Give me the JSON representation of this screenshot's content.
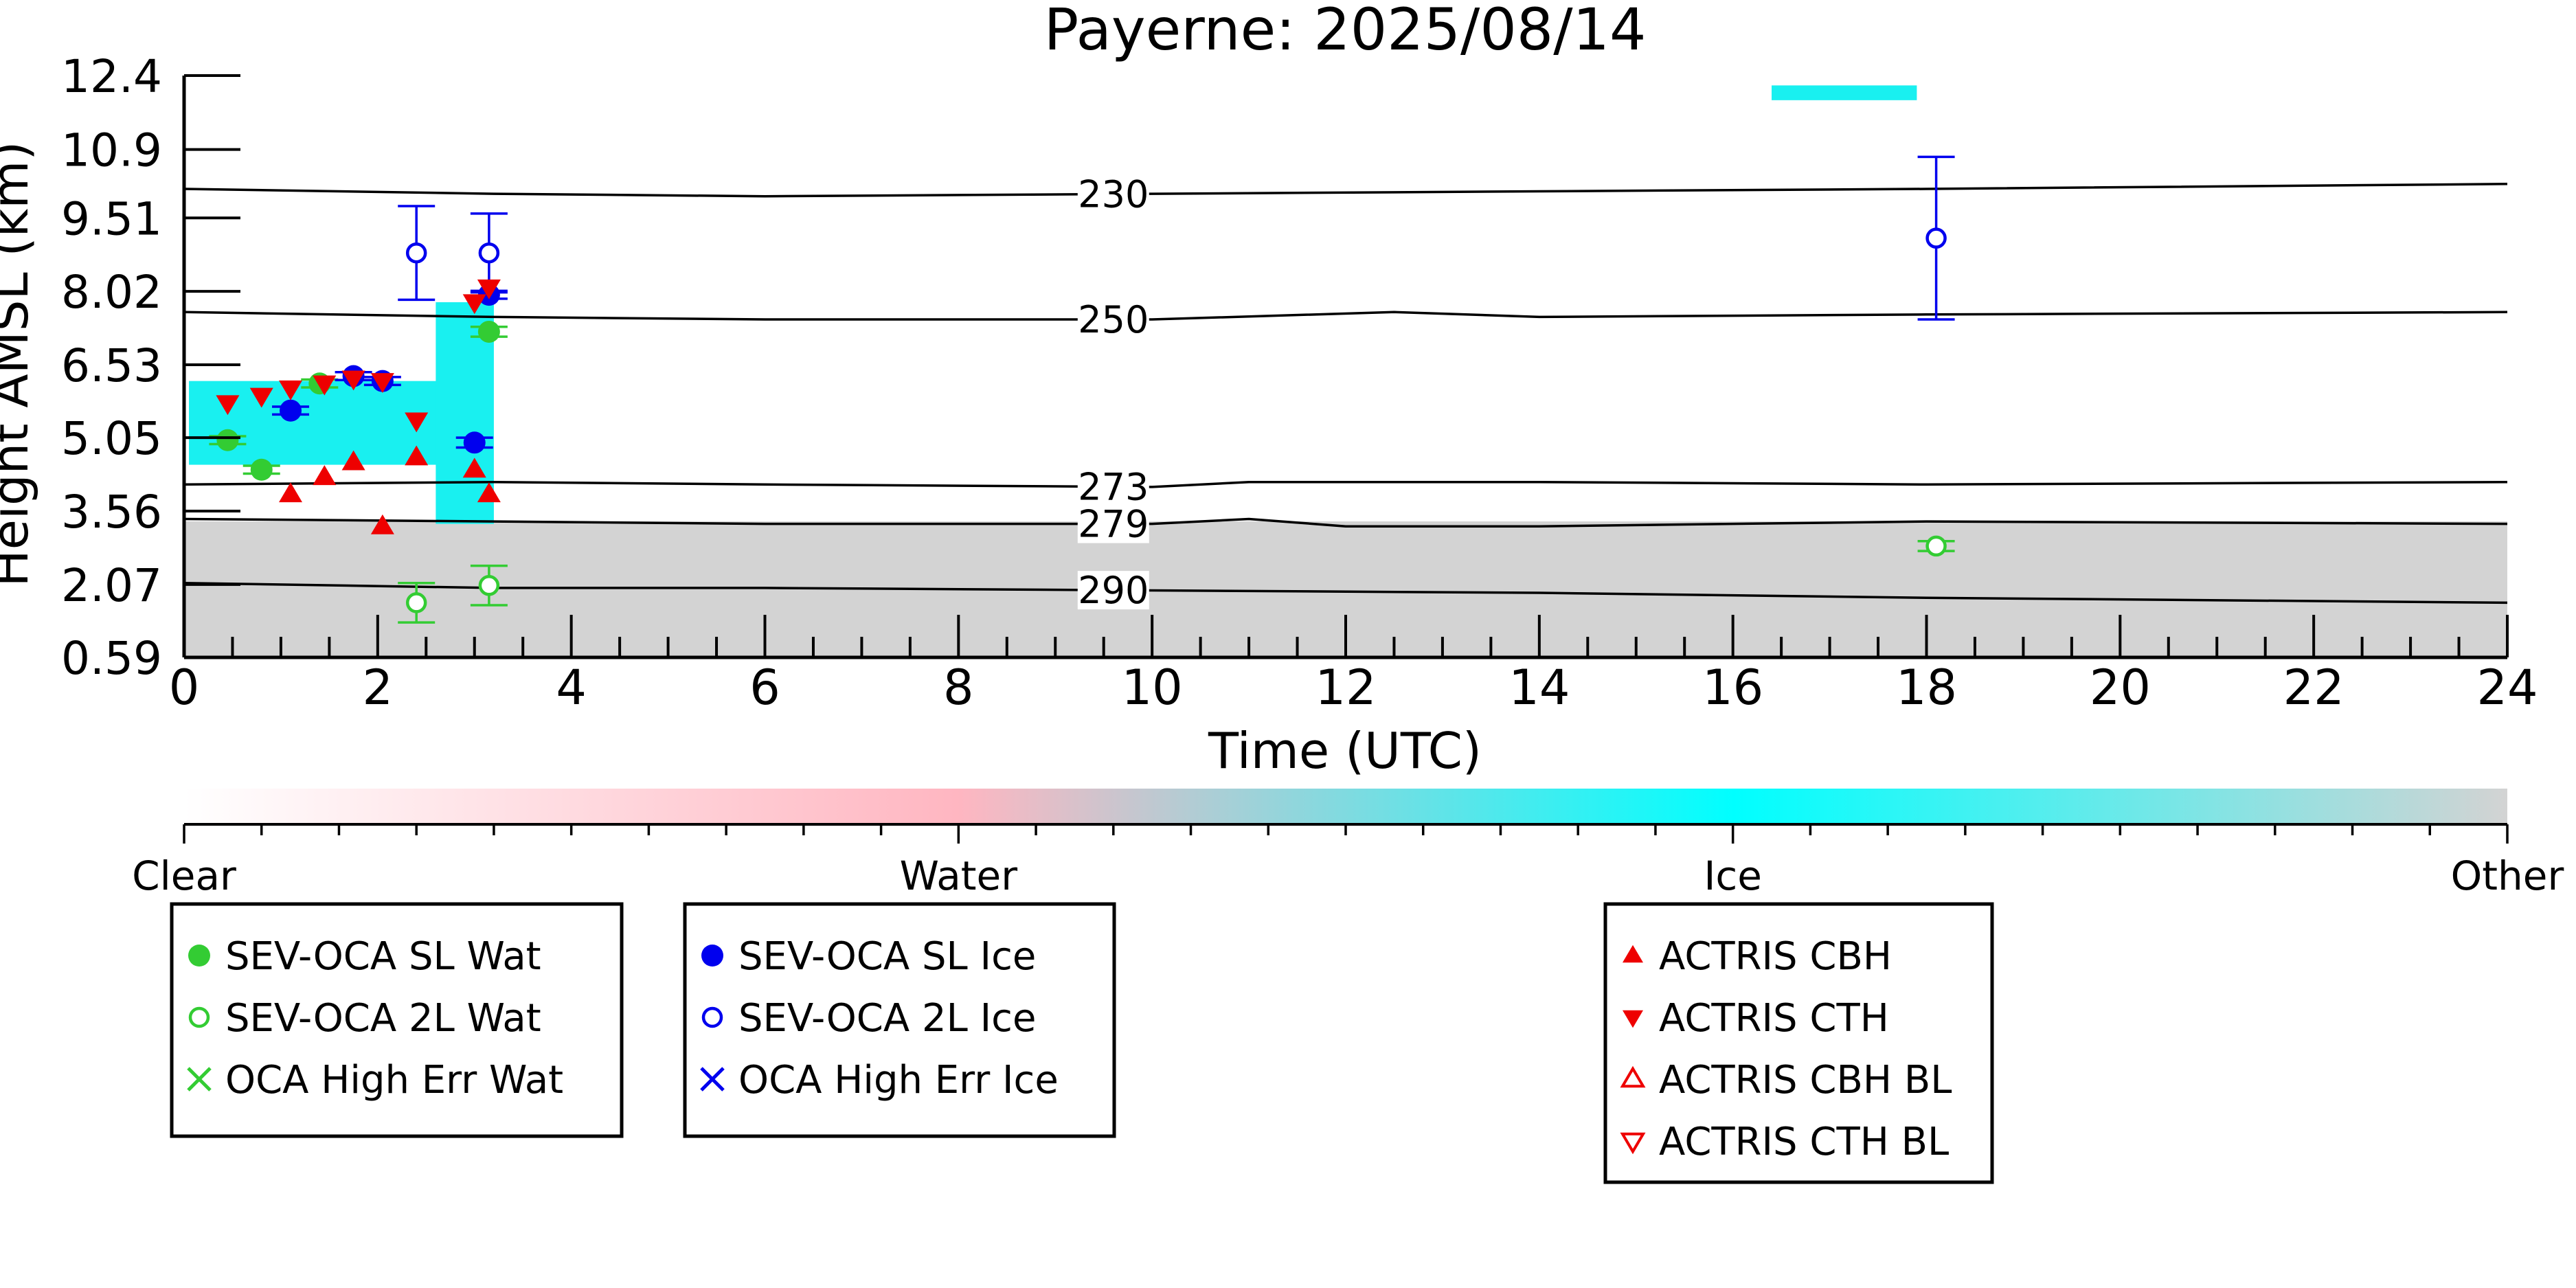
{
  "chart_data": {
    "type": "scatter",
    "title": "Payerne: 2025/08/14",
    "xlabel": "Time (UTC)",
    "ylabel": "Height AMSL (km)",
    "xlim": [
      0,
      24
    ],
    "ylim": [
      0.59,
      12.4
    ],
    "x_ticks": [
      0,
      2,
      4,
      6,
      8,
      10,
      12,
      14,
      16,
      18,
      20,
      22,
      24
    ],
    "x_tick_labels": [
      "0",
      "2",
      "4",
      "6",
      "8",
      "10",
      "12",
      "14",
      "16",
      "18",
      "20",
      "22",
      "24"
    ],
    "y_ticks": [
      0.59,
      2.07,
      3.56,
      5.05,
      6.53,
      8.02,
      9.51,
      10.9,
      12.4
    ],
    "y_tick_labels": [
      "0.59",
      "2.07",
      "3.56",
      "5.05",
      "6.53",
      "8.02",
      "9.51",
      "10.9",
      "12.4"
    ],
    "grid": false,
    "isotherms": [
      {
        "label": "230",
        "label_x": 9.6,
        "points": [
          [
            0,
            10.1
          ],
          [
            3.2,
            10.0
          ],
          [
            6,
            9.95
          ],
          [
            10,
            10.0
          ],
          [
            14,
            10.05
          ],
          [
            18,
            10.1
          ],
          [
            24,
            10.2
          ]
        ]
      },
      {
        "label": "250",
        "label_x": 9.6,
        "points": [
          [
            0,
            7.6
          ],
          [
            3.2,
            7.5
          ],
          [
            6,
            7.45
          ],
          [
            10,
            7.45
          ],
          [
            12.5,
            7.6
          ],
          [
            14,
            7.5
          ],
          [
            18,
            7.55
          ],
          [
            24,
            7.6
          ]
        ]
      },
      {
        "label": "273",
        "label_x": 9.6,
        "points": [
          [
            0,
            4.1
          ],
          [
            3.2,
            4.15
          ],
          [
            6,
            4.1
          ],
          [
            10,
            4.05
          ],
          [
            11,
            4.15
          ],
          [
            14,
            4.15
          ],
          [
            18,
            4.1
          ],
          [
            24,
            4.15
          ]
        ]
      },
      {
        "label": "279",
        "label_x": 9.6,
        "points": [
          [
            0,
            3.4
          ],
          [
            3.2,
            3.35
          ],
          [
            6,
            3.3
          ],
          [
            10,
            3.3
          ],
          [
            11,
            3.4
          ],
          [
            12,
            3.25
          ],
          [
            14,
            3.25
          ],
          [
            18,
            3.35
          ],
          [
            24,
            3.3
          ]
        ]
      },
      {
        "label": "290",
        "label_x": 9.6,
        "points": [
          [
            0,
            2.1
          ],
          [
            3.2,
            2.0
          ],
          [
            6,
            2.0
          ],
          [
            10,
            1.95
          ],
          [
            14,
            1.9
          ],
          [
            18,
            1.8
          ],
          [
            24,
            1.7
          ]
        ]
      }
    ],
    "classification_regions": [
      {
        "class": "Other",
        "color": "#d3d3d3",
        "x_start": 0,
        "x_end": 24,
        "y_bottom": 0.59,
        "y_top": 3.35
      },
      {
        "class": "Ice",
        "color": "#19f0f0",
        "x_start": 0.05,
        "x_end": 2.7,
        "y_bottom": 4.5,
        "y_top": 6.2
      },
      {
        "class": "Ice",
        "color": "#19f0f0",
        "x_start": 2.6,
        "x_end": 3.2,
        "y_bottom": 3.3,
        "y_top": 7.8
      },
      {
        "class": "Ice",
        "color": "#19f0f0",
        "x_start": 16.4,
        "x_end": 17.9,
        "y_bottom": 11.9,
        "y_top": 12.2
      }
    ],
    "series": [
      {
        "name": "SEV-OCA SL Wat",
        "color": "#33cc33",
        "marker": "circle-filled",
        "x": [
          0.45,
          0.8,
          1.4,
          3.15
        ],
        "y": [
          5.0,
          4.4,
          6.15,
          7.2
        ],
        "err": [
          0.08,
          0.08,
          0.08,
          0.1
        ]
      },
      {
        "name": "SEV-OCA 2L Wat",
        "color": "#33cc33",
        "marker": "circle-open",
        "x": [
          2.4,
          3.15,
          18.1
        ],
        "y": [
          1.7,
          2.05,
          2.85
        ],
        "err": [
          0.4,
          0.4,
          0.1
        ]
      },
      {
        "name": "OCA High Err Wat",
        "color": "#33cc33",
        "marker": "x",
        "x": [],
        "y": []
      },
      {
        "name": "SEV-OCA SL Ice",
        "color": "#0000ee",
        "marker": "circle-filled",
        "x": [
          1.1,
          1.75,
          2.05,
          3.0,
          3.15
        ],
        "y": [
          5.6,
          6.3,
          6.2,
          4.95,
          7.95
        ],
        "err": [
          0.08,
          0.08,
          0.08,
          0.1,
          0.08
        ]
      },
      {
        "name": "SEV-OCA 2L Ice",
        "color": "#0000ee",
        "marker": "circle-open",
        "x": [
          2.4,
          3.15,
          18.1
        ],
        "y": [
          8.8,
          8.8,
          9.1
        ],
        "err": [
          0.95,
          0.8,
          1.65
        ]
      },
      {
        "name": "OCA High Err Ice",
        "color": "#0000ee",
        "marker": "x",
        "x": [],
        "y": []
      },
      {
        "name": "ACTRIS CBH",
        "color": "#ee0000",
        "marker": "triangle-up-filled",
        "x": [
          1.1,
          1.45,
          1.75,
          2.05,
          2.4,
          3.0,
          3.15
        ],
        "y": [
          3.9,
          4.25,
          4.55,
          3.25,
          4.65,
          4.4,
          3.9
        ]
      },
      {
        "name": "ACTRIS CTH",
        "color": "#ee0000",
        "marker": "triangle-down-filled",
        "x": [
          0.45,
          0.8,
          1.1,
          1.45,
          1.75,
          2.05,
          2.4,
          3.0,
          3.15
        ],
        "y": [
          5.75,
          5.9,
          6.05,
          6.15,
          6.25,
          6.2,
          5.4,
          7.8,
          8.1
        ]
      },
      {
        "name": "ACTRIS CBH BL",
        "color": "#ee0000",
        "marker": "triangle-up-open",
        "x": [],
        "y": []
      },
      {
        "name": "ACTRIS CTH BL",
        "color": "#ee0000",
        "marker": "triangle-down-open",
        "x": [],
        "y": []
      }
    ],
    "colorbar": {
      "labels": [
        "Clear",
        "Water",
        "Ice",
        "Other"
      ],
      "colors": [
        "#ffffff",
        "#ffb6c1",
        "#00ffff",
        "#d3d3d3"
      ]
    },
    "legend_groups": [
      [
        "SEV-OCA SL Wat",
        "SEV-OCA 2L Wat",
        "OCA High Err Wat"
      ],
      [
        "SEV-OCA SL Ice",
        "SEV-OCA 2L Ice",
        "OCA High Err Ice"
      ],
      [
        "ACTRIS CBH",
        "ACTRIS CTH",
        "ACTRIS CBH BL",
        "ACTRIS CTH BL"
      ]
    ],
    "legend_placement": "bottom"
  }
}
